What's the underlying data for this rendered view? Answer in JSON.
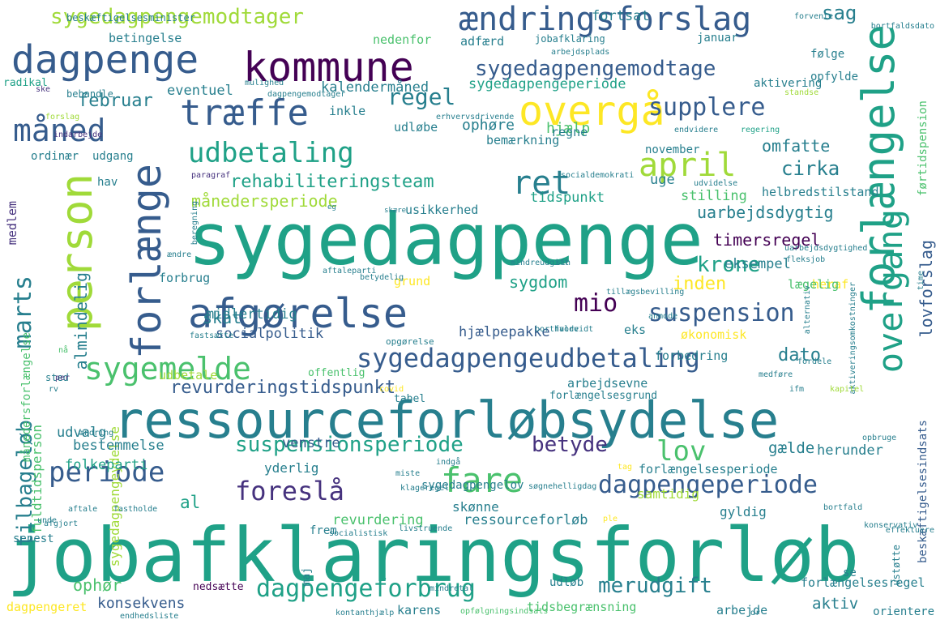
{
  "palette": {
    "background": "#ffffff",
    "purple": "#440154",
    "indigo": "#46327e",
    "blue": "#365c8d",
    "steel": "#277f8e",
    "teal": "#1fa187",
    "green": "#4ac16d",
    "lime": "#a0da39",
    "yellow": "#fde725"
  },
  "words": [
    "jobafklaringsforløb",
    "sygedagpenge",
    "ressourceforløbsydelse",
    "overgang",
    "forlængelse",
    "afgørelse",
    "person",
    "forlænge",
    "kommune",
    "dagpenge",
    "ændringsforslag",
    "overgå",
    "træffe",
    "måned",
    "fare",
    "sygedagpengeudbetaling",
    "udbetaling",
    "sygemelde",
    "ret",
    "april",
    "supplere",
    "periode",
    "suspensionsperiode",
    "sygedagpengemodtage",
    "sygedagpengemodtager",
    "dagpengeperiode",
    "dagpengeforbrug",
    "foreslå",
    "lov",
    "suspension",
    "mio",
    "marts",
    "regel",
    "cirka",
    "tilbageløb",
    "betyde",
    "merudgift",
    "revurderingstidspunkt",
    "rehabiliteringsteam",
    "månedersperiode",
    "krone",
    "februar",
    "almindelig",
    "sag",
    "timersregel",
    "uarbejdsdygtig",
    "lovforslag",
    "omfatte",
    "inden",
    "sygedagpengeperiode",
    "fuldtidsperson",
    "sygedagpengeydelse",
    "socialpolitik",
    "midlertidig",
    "eksempel",
    "skat",
    "sygdom",
    "dato",
    "venstre",
    "gælde",
    "konsekvens",
    "ophør",
    "ressourceforløb",
    "revurdering",
    "bestemmelse",
    "folkeparti",
    "udvalg",
    "aktiv",
    "hjælpepakke",
    "herunder",
    "al",
    "uge",
    "stilling",
    "tidspunkt",
    "kalendermåned",
    "eventuel",
    "fortsat",
    "nedenfor",
    "adfærd",
    "jobafklaring",
    "januar",
    "følge",
    "opfylde",
    "aktivering",
    "ophøre",
    "hjælp",
    "regne",
    "bemærkning",
    "november",
    "ordinær",
    "udgang",
    "hav",
    "inkle",
    "udløbe",
    "tidsbegrænsning",
    "samtidig",
    "gyldig",
    "skønne",
    "yderlig",
    "forlængelsesperiode",
    "forlængelsesregel",
    "udbetale",
    "økonomisk",
    "heraf",
    "lægelig",
    "forbrug",
    "grund",
    "usikkerhed",
    "helbredstilstand",
    "arbejdsevne",
    "forbedring",
    "eks",
    "betingelse",
    "beskæftigelsesminister",
    "dagpengeret",
    "karens",
    "arbejde",
    "medlem",
    "beskæftigelsesindsats",
    "førtidspension",
    "månedersforlængelse",
    "tabel",
    "forlængelsesgrund",
    "sygedagpengelov",
    "offentlig",
    "nedsætte",
    "udløb",
    "maj",
    "frem",
    "senest",
    "se",
    "orientere",
    "ustøtte",
    "radikal",
    "behandle",
    "ske",
    "forslag",
    "mulighed",
    "dagpengemodtager",
    "indarbejde",
    "erhvervsdrivende",
    "standse",
    "forvente",
    "bortfaldsdato",
    "arbejdsplads",
    "endvidere",
    "regering",
    "socialdemokrati",
    "udvidelse",
    "paragraf",
    "eg",
    "skære",
    "beregning",
    "ændre",
    "mindreudgift",
    "sin",
    "uarbejdsdygtighed",
    "fleksjob",
    "aftaleparti",
    "betydelig",
    "tillægsbevilling",
    "anmode",
    "alternativ",
    "aktiveringsomkostninger",
    "time",
    "opgørelse",
    "bortfalde",
    "fastsætte",
    "hvorvidt",
    "nå",
    "sted",
    "per",
    "rv",
    "fordele",
    "medføre",
    "ifm",
    "kapitel",
    "covid",
    "ændring",
    "aftale",
    "fastholde",
    "unde",
    "indgå",
    "miste",
    "tag",
    "opbruge",
    "klageregel",
    "søgnehelligdag",
    "livstruende",
    "socialistisk",
    "bortfald",
    "ple",
    "konservativ",
    "afgjort",
    "effektuere",
    "mindretal",
    "opfølgningsindsats",
    "endhedsliste",
    "kontanthjælp",
    "dr"
  ]
}
